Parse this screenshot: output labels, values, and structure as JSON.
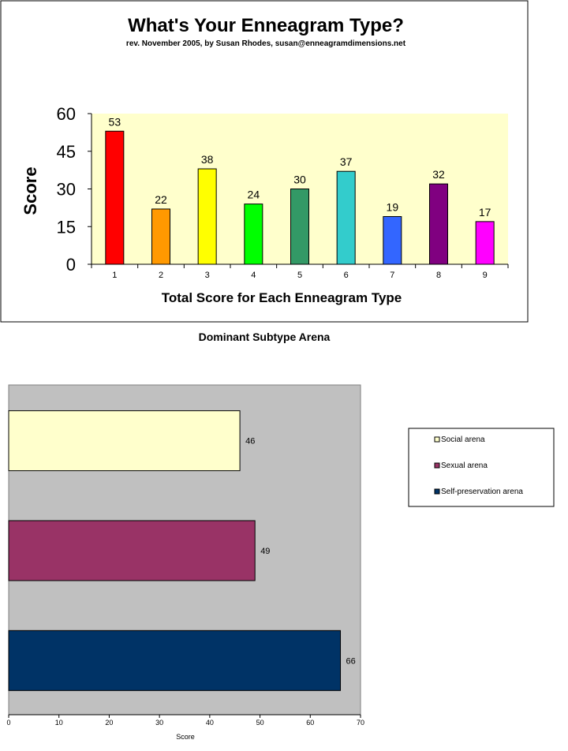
{
  "chart_data": [
    {
      "type": "bar",
      "title": "What's Your Enneagram Type?",
      "subtitle": "rev. November 2005, by Susan Rhodes, susan@enneagramdimensions.net",
      "xlabel": "Total Score for Each Enneagram Type",
      "ylabel": "Score",
      "ylim": [
        0,
        60
      ],
      "yticks": [
        0,
        15,
        30,
        45,
        60
      ],
      "categories": [
        "1",
        "2",
        "3",
        "4",
        "5",
        "6",
        "7",
        "8",
        "9"
      ],
      "values": [
        53,
        22,
        38,
        24,
        30,
        37,
        19,
        32,
        17
      ],
      "colors": [
        "#ff0000",
        "#ff9900",
        "#ffff00",
        "#00ff00",
        "#339966",
        "#33cccc",
        "#3366ff",
        "#800080",
        "#ff00ff"
      ],
      "plot_background": "#ffffcc",
      "grid": false
    },
    {
      "type": "bar",
      "orientation": "horizontal",
      "title": "Dominant Subtype Arena",
      "xlabel": "Score",
      "ylabel": "",
      "xlim": [
        0,
        70
      ],
      "xticks": [
        0,
        10,
        20,
        30,
        40,
        50,
        60,
        70
      ],
      "series": [
        {
          "name": "Social arena",
          "value": 46,
          "color": "#ffffcc"
        },
        {
          "name": "Sexual arena",
          "value": 49,
          "color": "#993366"
        },
        {
          "name": "Self-preservation arena",
          "value": 66,
          "color": "#003366"
        }
      ],
      "plot_background": "#c0c0c0",
      "legend": "right",
      "grid": false
    }
  ]
}
